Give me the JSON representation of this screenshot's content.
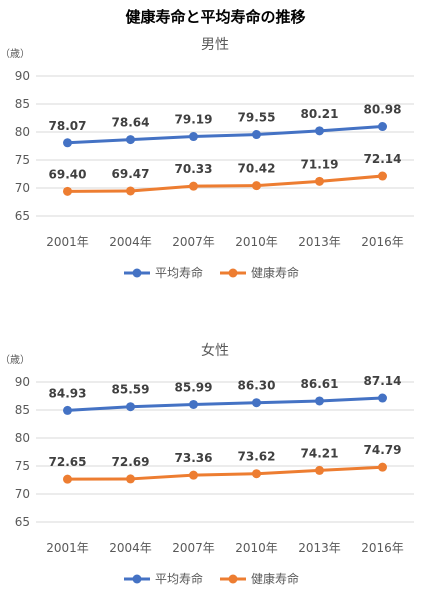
{
  "page_title": "健康寿命と平均寿命の推移",
  "chart_data": [
    {
      "type": "line",
      "title": "男性",
      "unit_label": "（歳）",
      "categories": [
        "2001年",
        "2004年",
        "2007年",
        "2010年",
        "2013年",
        "2016年"
      ],
      "ylim": [
        65,
        90
      ],
      "yticks": [
        65,
        70,
        75,
        80,
        85,
        90
      ],
      "grid": true,
      "legend_position": "bottom",
      "series": [
        {
          "name": "平均寿命",
          "color": "#4472c4",
          "values": [
            78.07,
            78.64,
            79.19,
            79.55,
            80.21,
            80.98
          ],
          "labels": [
            "78.07",
            "78.64",
            "79.19",
            "79.55",
            "80.21",
            "80.98"
          ]
        },
        {
          "name": "健康寿命",
          "color": "#ed7d31",
          "values": [
            69.4,
            69.47,
            70.33,
            70.42,
            71.19,
            72.14
          ],
          "labels": [
            "69.40",
            "69.47",
            "70.33",
            "70.42",
            "71.19",
            "72.14"
          ]
        }
      ]
    },
    {
      "type": "line",
      "title": "女性",
      "unit_label": "（歳）",
      "categories": [
        "2001年",
        "2004年",
        "2007年",
        "2010年",
        "2013年",
        "2016年"
      ],
      "ylim": [
        65,
        90
      ],
      "yticks": [
        65,
        70,
        75,
        80,
        85,
        90
      ],
      "grid": true,
      "legend_position": "bottom",
      "series": [
        {
          "name": "平均寿命",
          "color": "#4472c4",
          "values": [
            84.93,
            85.59,
            85.99,
            86.3,
            86.61,
            87.14
          ],
          "labels": [
            "84.93",
            "85.59",
            "85.99",
            "86.30",
            "86.61",
            "87.14"
          ]
        },
        {
          "name": "健康寿命",
          "color": "#ed7d31",
          "values": [
            72.65,
            72.69,
            73.36,
            73.62,
            74.21,
            74.79
          ],
          "labels": [
            "72.65",
            "72.69",
            "73.36",
            "73.62",
            "74.21",
            "74.79"
          ]
        }
      ]
    }
  ]
}
